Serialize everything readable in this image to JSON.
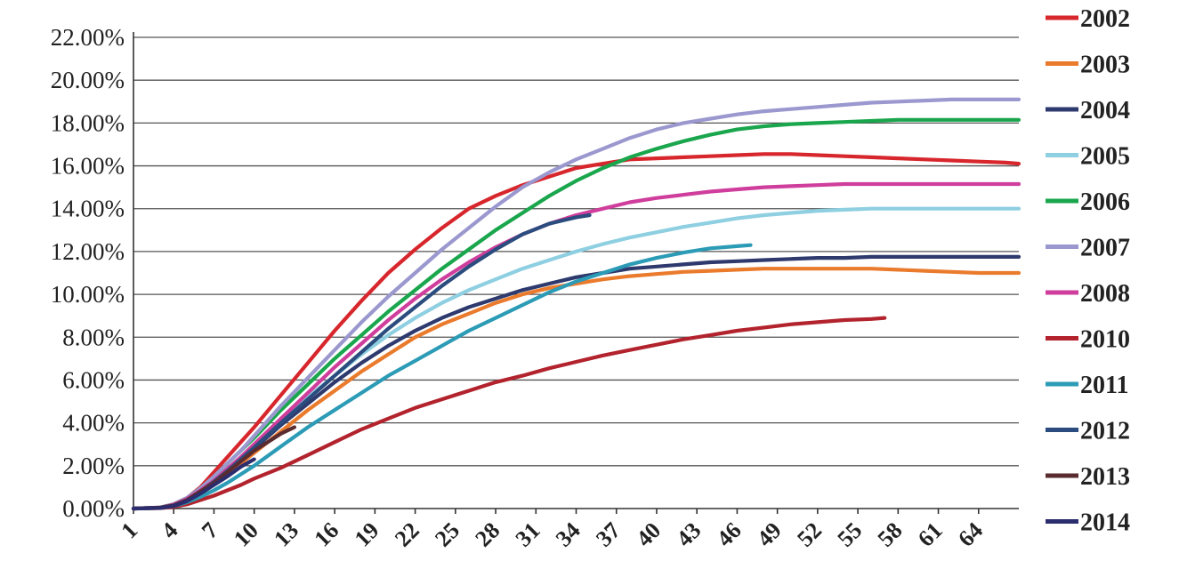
{
  "chart_data": {
    "type": "line",
    "title": "",
    "xlabel": "",
    "ylabel": "",
    "x_tick_labels": [
      "1",
      "4",
      "7",
      "10",
      "13",
      "16",
      "19",
      "22",
      "25",
      "28",
      "31",
      "34",
      "37",
      "40",
      "43",
      "46",
      "49",
      "52",
      "55",
      "58",
      "61",
      "64"
    ],
    "x_range": [
      1,
      67
    ],
    "y_tick_labels": [
      "0.00%",
      "2.00%",
      "4.00%",
      "6.00%",
      "8.00%",
      "10.00%",
      "12.00%",
      "14.00%",
      "16.00%",
      "18.00%",
      "20.00%",
      "22.00%"
    ],
    "ylim": [
      0,
      22
    ],
    "grid": "horizontal",
    "legend_position": "right",
    "series": [
      {
        "name": "2002",
        "color": "#d7262c",
        "x": [
          1,
          3,
          4,
          5,
          6,
          7,
          8,
          9,
          10,
          12,
          14,
          16,
          18,
          20,
          22,
          24,
          26,
          28,
          30,
          32,
          34,
          36,
          38,
          40,
          42,
          44,
          46,
          48,
          50,
          52,
          54,
          56,
          58,
          60,
          62,
          64,
          66,
          67
        ],
        "y": [
          0,
          0.05,
          0.2,
          0.5,
          1.0,
          1.7,
          2.4,
          3.1,
          3.8,
          5.3,
          6.8,
          8.3,
          9.7,
          11.0,
          12.1,
          13.1,
          14.0,
          14.6,
          15.1,
          15.5,
          15.9,
          16.1,
          16.3,
          16.35,
          16.4,
          16.45,
          16.5,
          16.55,
          16.55,
          16.5,
          16.45,
          16.4,
          16.35,
          16.3,
          16.25,
          16.2,
          16.15,
          16.1
        ]
      },
      {
        "name": "2003",
        "color": "#ea7b2d",
        "x": [
          1,
          3,
          4,
          5,
          6,
          7,
          8,
          9,
          10,
          12,
          14,
          16,
          18,
          20,
          22,
          24,
          26,
          28,
          30,
          32,
          34,
          36,
          38,
          40,
          42,
          44,
          46,
          48,
          50,
          52,
          54,
          56,
          58,
          60,
          62,
          64,
          66,
          67
        ],
        "y": [
          0,
          0.03,
          0.15,
          0.4,
          0.8,
          1.2,
          1.6,
          2.1,
          2.6,
          3.6,
          4.6,
          5.5,
          6.4,
          7.2,
          8.0,
          8.6,
          9.1,
          9.6,
          10.0,
          10.3,
          10.5,
          10.7,
          10.85,
          10.95,
          11.05,
          11.1,
          11.15,
          11.2,
          11.2,
          11.2,
          11.2,
          11.2,
          11.15,
          11.1,
          11.05,
          11.0,
          11.0,
          11.0
        ]
      },
      {
        "name": "2004",
        "color": "#2e3a6e",
        "x": [
          1,
          3,
          4,
          5,
          6,
          7,
          8,
          9,
          10,
          12,
          14,
          16,
          18,
          20,
          22,
          24,
          26,
          28,
          30,
          32,
          34,
          36,
          38,
          40,
          42,
          44,
          46,
          48,
          50,
          52,
          54,
          56,
          58,
          60,
          62,
          64,
          66,
          67
        ],
        "y": [
          0,
          0.04,
          0.18,
          0.45,
          0.85,
          1.3,
          1.8,
          2.3,
          2.8,
          3.9,
          4.9,
          5.9,
          6.8,
          7.6,
          8.3,
          8.9,
          9.4,
          9.8,
          10.2,
          10.5,
          10.8,
          11.0,
          11.2,
          11.3,
          11.4,
          11.5,
          11.55,
          11.6,
          11.65,
          11.7,
          11.7,
          11.75,
          11.75,
          11.75,
          11.75,
          11.75,
          11.75,
          11.75
        ]
      },
      {
        "name": "2005",
        "color": "#8ecfe1",
        "x": [
          1,
          3,
          4,
          5,
          6,
          7,
          8,
          9,
          10,
          12,
          14,
          16,
          18,
          20,
          22,
          24,
          26,
          28,
          30,
          32,
          34,
          36,
          38,
          40,
          42,
          44,
          46,
          48,
          50,
          52,
          54,
          56,
          58,
          60,
          62,
          64,
          66,
          67
        ],
        "y": [
          0,
          0.04,
          0.18,
          0.45,
          0.85,
          1.3,
          1.85,
          2.4,
          2.95,
          4.1,
          5.2,
          6.2,
          7.2,
          8.1,
          8.9,
          9.6,
          10.2,
          10.7,
          11.2,
          11.6,
          12.0,
          12.35,
          12.65,
          12.9,
          13.15,
          13.35,
          13.55,
          13.7,
          13.8,
          13.9,
          13.95,
          14.0,
          14.0,
          14.0,
          14.0,
          14.0,
          14.0,
          14.0
        ]
      },
      {
        "name": "2006",
        "color": "#1aa64d",
        "x": [
          1,
          3,
          4,
          5,
          6,
          7,
          8,
          9,
          10,
          12,
          14,
          16,
          18,
          20,
          22,
          24,
          26,
          28,
          30,
          32,
          34,
          36,
          38,
          40,
          42,
          44,
          46,
          48,
          50,
          52,
          54,
          56,
          58,
          60,
          62,
          64,
          66,
          67
        ],
        "y": [
          0,
          0.05,
          0.2,
          0.5,
          0.95,
          1.5,
          2.1,
          2.7,
          3.3,
          4.6,
          5.8,
          7.0,
          8.1,
          9.2,
          10.2,
          11.2,
          12.1,
          13.0,
          13.8,
          14.6,
          15.3,
          15.9,
          16.4,
          16.8,
          17.15,
          17.45,
          17.7,
          17.85,
          17.95,
          18.0,
          18.05,
          18.1,
          18.15,
          18.15,
          18.15,
          18.15,
          18.15,
          18.15
        ]
      },
      {
        "name": "2007",
        "color": "#9b98cf",
        "x": [
          1,
          3,
          4,
          5,
          6,
          7,
          8,
          9,
          10,
          12,
          14,
          16,
          18,
          20,
          22,
          24,
          26,
          28,
          30,
          32,
          34,
          36,
          38,
          40,
          42,
          44,
          46,
          48,
          50,
          52,
          54,
          56,
          58,
          60,
          62,
          64,
          66,
          67
        ],
        "y": [
          0,
          0.05,
          0.2,
          0.5,
          0.95,
          1.5,
          2.1,
          2.7,
          3.4,
          4.8,
          6.1,
          7.4,
          8.7,
          9.9,
          11.0,
          12.1,
          13.1,
          14.1,
          15.0,
          15.7,
          16.3,
          16.8,
          17.3,
          17.7,
          18.0,
          18.2,
          18.4,
          18.55,
          18.65,
          18.75,
          18.85,
          18.95,
          19.0,
          19.05,
          19.1,
          19.1,
          19.1,
          19.1
        ]
      },
      {
        "name": "2008",
        "color": "#cf3e9c",
        "x": [
          1,
          3,
          4,
          5,
          6,
          7,
          8,
          9,
          10,
          12,
          14,
          16,
          18,
          20,
          22,
          24,
          26,
          28,
          30,
          32,
          34,
          36,
          38,
          40,
          42,
          44,
          46,
          48,
          50,
          52,
          54,
          56,
          58,
          60,
          62,
          64,
          66,
          67
        ],
        "y": [
          0,
          0.04,
          0.18,
          0.45,
          0.85,
          1.3,
          1.85,
          2.4,
          3.0,
          4.2,
          5.4,
          6.6,
          7.7,
          8.8,
          9.8,
          10.7,
          11.5,
          12.2,
          12.8,
          13.3,
          13.7,
          14.0,
          14.3,
          14.5,
          14.65,
          14.8,
          14.9,
          15.0,
          15.05,
          15.1,
          15.15,
          15.15,
          15.15,
          15.15,
          15.15,
          15.15,
          15.15,
          15.15
        ]
      },
      {
        "name": "2010",
        "color": "#b2232d",
        "x": [
          1,
          3,
          4,
          5,
          6,
          7,
          8,
          9,
          10,
          12,
          14,
          16,
          18,
          20,
          22,
          24,
          26,
          28,
          30,
          32,
          34,
          36,
          38,
          40,
          42,
          44,
          46,
          48,
          50,
          52,
          54,
          56,
          57
        ],
        "y": [
          0,
          0.02,
          0.08,
          0.2,
          0.4,
          0.6,
          0.85,
          1.1,
          1.4,
          1.9,
          2.5,
          3.1,
          3.7,
          4.2,
          4.7,
          5.1,
          5.5,
          5.9,
          6.2,
          6.55,
          6.85,
          7.15,
          7.4,
          7.65,
          7.9,
          8.1,
          8.3,
          8.45,
          8.6,
          8.7,
          8.8,
          8.85,
          8.9
        ]
      },
      {
        "name": "2011",
        "color": "#2c9bb6",
        "x": [
          1,
          3,
          4,
          5,
          6,
          7,
          8,
          9,
          10,
          12,
          14,
          16,
          18,
          20,
          22,
          24,
          26,
          28,
          30,
          32,
          34,
          36,
          38,
          40,
          42,
          44,
          46,
          47
        ],
        "y": [
          0,
          0.03,
          0.12,
          0.3,
          0.55,
          0.85,
          1.2,
          1.6,
          2.0,
          2.9,
          3.8,
          4.6,
          5.4,
          6.2,
          6.9,
          7.6,
          8.3,
          8.9,
          9.5,
          10.1,
          10.6,
          11.0,
          11.4,
          11.7,
          11.95,
          12.15,
          12.25,
          12.3
        ]
      },
      {
        "name": "2012",
        "color": "#2b4c7e",
        "x": [
          1,
          3,
          4,
          5,
          6,
          7,
          8,
          9,
          10,
          12,
          14,
          16,
          18,
          20,
          22,
          24,
          26,
          28,
          30,
          32,
          34,
          35
        ],
        "y": [
          0,
          0.04,
          0.15,
          0.4,
          0.8,
          1.25,
          1.75,
          2.3,
          2.85,
          4.0,
          5.1,
          6.2,
          7.3,
          8.4,
          9.4,
          10.4,
          11.3,
          12.1,
          12.8,
          13.3,
          13.6,
          13.7
        ]
      },
      {
        "name": "2013",
        "color": "#5a2b2f",
        "x": [
          1,
          3,
          4,
          5,
          6,
          7,
          8,
          9,
          10,
          11,
          12,
          13
        ],
        "y": [
          0,
          0.04,
          0.15,
          0.4,
          0.8,
          1.2,
          1.7,
          2.2,
          2.7,
          3.1,
          3.5,
          3.8
        ]
      },
      {
        "name": "2014",
        "color": "#2b2d6e",
        "x": [
          1,
          3,
          4,
          5,
          6,
          7,
          8,
          9,
          10
        ],
        "y": [
          0,
          0.03,
          0.12,
          0.35,
          0.7,
          1.1,
          1.5,
          1.95,
          2.3
        ]
      }
    ]
  }
}
